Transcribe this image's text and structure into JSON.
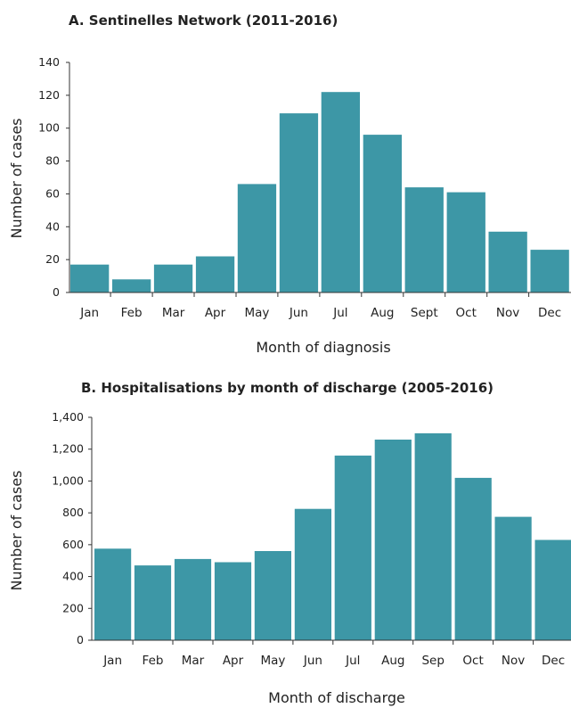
{
  "chart_data": [
    {
      "type": "bar",
      "title": "A. Sentinelles Network (2011-2016)",
      "xlabel": "Month of diagnosis",
      "ylabel": "Number of cases",
      "categories": [
        "Jan",
        "Feb",
        "Mar",
        "Apr",
        "May",
        "Jun",
        "Jul",
        "Aug",
        "Sept",
        "Oct",
        "Nov",
        "Dec"
      ],
      "values": [
        17,
        8,
        17,
        22,
        66,
        109,
        122,
        96,
        64,
        61,
        37,
        26
      ],
      "ylim": [
        0,
        140
      ],
      "yticks": [
        "0",
        "20",
        "40",
        "60",
        "80",
        "100",
        "120",
        "140"
      ],
      "bar_color": "#3d97a6",
      "grid": false
    },
    {
      "type": "bar",
      "title": "B. Hospitalisations by month of discharge (2005-2016)",
      "xlabel": "Month of discharge",
      "ylabel": "Number of cases",
      "categories": [
        "Jan",
        "Feb",
        "Mar",
        "Apr",
        "May",
        "Jun",
        "Jul",
        "Aug",
        "Sep",
        "Oct",
        "Nov",
        "Dec"
      ],
      "values": [
        575,
        470,
        510,
        490,
        560,
        825,
        1160,
        1260,
        1300,
        1020,
        775,
        630
      ],
      "ylim": [
        0,
        1400
      ],
      "yticks": [
        "0",
        "200",
        "400",
        "600",
        "800",
        "1,000",
        "1,200",
        "1,400"
      ],
      "bar_color": "#3d97a6",
      "grid": false
    }
  ]
}
